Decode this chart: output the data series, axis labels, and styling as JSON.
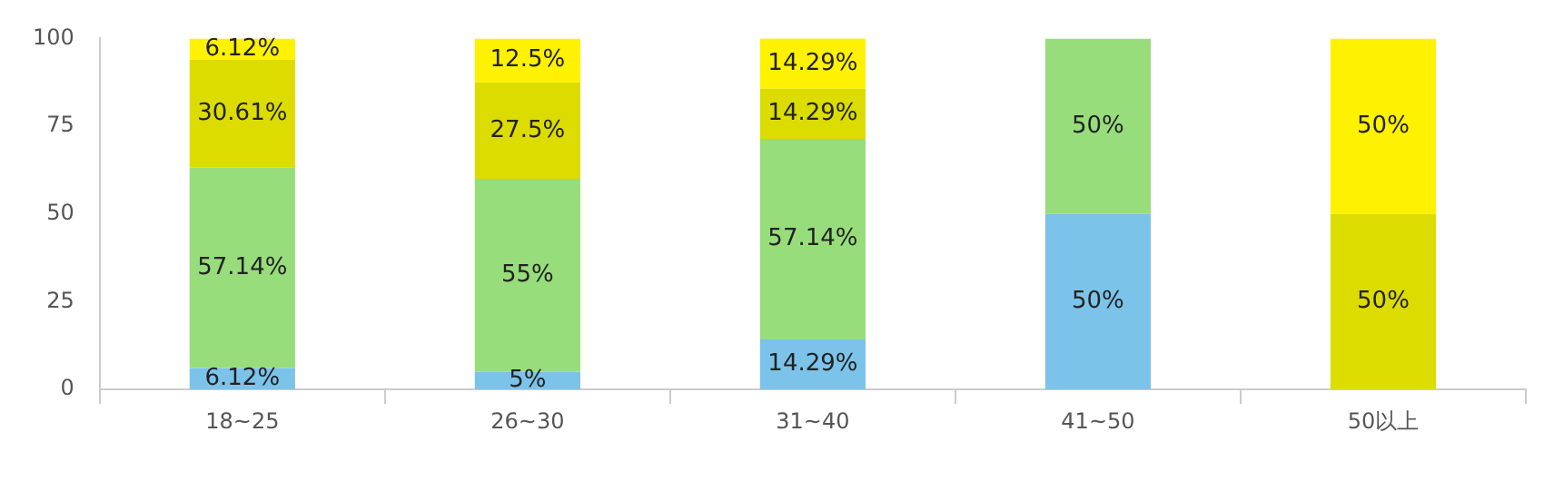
{
  "chart_data": {
    "type": "bar",
    "stacked": true,
    "categories": [
      "18~25",
      "26~30",
      "31~40",
      "41~50",
      "50以上"
    ],
    "ylim": [
      0,
      100
    ],
    "yticks": [
      0,
      25,
      50,
      75,
      100
    ],
    "grid": false,
    "legend": false,
    "series": [
      {
        "color": "#7cc3ea",
        "values": [
          6.12,
          5,
          14.29,
          50,
          null
        ],
        "value_labels": [
          "6.12%",
          "5%",
          "14.29%",
          "50%",
          null
        ]
      },
      {
        "color": "#98dd7c",
        "values": [
          57.14,
          55,
          57.14,
          50,
          null
        ],
        "value_labels": [
          "57.14%",
          "55%",
          "57.14%",
          "50%",
          null
        ]
      },
      {
        "color": "#dcdc00",
        "values": [
          30.61,
          27.5,
          14.29,
          null,
          50
        ],
        "value_labels": [
          "30.61%",
          "27.5%",
          "14.29%",
          null,
          "50%"
        ]
      },
      {
        "color": "#fff200",
        "values": [
          6.12,
          12.5,
          14.29,
          null,
          50
        ],
        "value_labels": [
          "6.12%",
          "12.5%",
          "14.29%",
          null,
          "50%"
        ]
      }
    ]
  }
}
